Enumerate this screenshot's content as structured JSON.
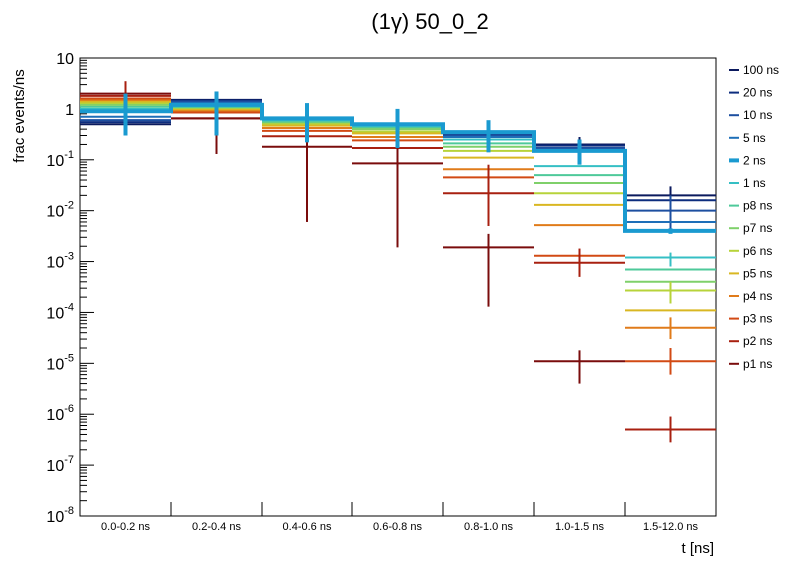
{
  "chart_data": {
    "type": "line",
    "title": "(1γ) 50_0_2",
    "xlabel": "t [ns]",
    "ylabel": "frac events/ns",
    "yscale": "log",
    "ylim": [
      1e-08,
      10
    ],
    "ytick_labels": [
      {
        "base": "10",
        "exp": "-8"
      },
      {
        "base": "10",
        "exp": "-7"
      },
      {
        "base": "10",
        "exp": "-6"
      },
      {
        "base": "10",
        "exp": "-5"
      },
      {
        "base": "10",
        "exp": "-4"
      },
      {
        "base": "10",
        "exp": "-3"
      },
      {
        "base": "10",
        "exp": "-2"
      },
      {
        "base": "10",
        "exp": "-1"
      },
      {
        "base": "1",
        "exp": ""
      },
      {
        "base": "10",
        "exp": ""
      }
    ],
    "categories": [
      "0.0-0.2 ns",
      "0.2-0.4 ns",
      "0.4-0.6 ns",
      "0.6-0.8 ns",
      "0.8-1.0 ns",
      "1.0-1.5 ns",
      "1.5-12.0 ns"
    ],
    "legend_position": "right",
    "series": [
      {
        "name": "100 ns",
        "color": "#0b1a5e",
        "thick": false,
        "values": [
          0.5,
          1.5,
          0.62,
          0.5,
          0.34,
          0.2,
          0.02
        ],
        "errors": [
          null,
          [
            1.2,
            1.8
          ],
          null,
          null,
          [
            0.25,
            0.45
          ],
          [
            0.12,
            0.28
          ],
          [
            0.008,
            0.03
          ]
        ]
      },
      {
        "name": "20 ns",
        "color": "#0d2d7e",
        "thick": false,
        "values": [
          0.55,
          1.45,
          0.62,
          0.5,
          0.32,
          0.19,
          0.016
        ],
        "errors": [
          null,
          null,
          null,
          null,
          null,
          null,
          null
        ]
      },
      {
        "name": "10 ns",
        "color": "#1d4fa0",
        "thick": false,
        "values": [
          0.6,
          1.4,
          0.6,
          0.5,
          0.3,
          0.17,
          0.01
        ],
        "errors": [
          null,
          null,
          null,
          null,
          null,
          null,
          [
            0.004,
            0.02
          ]
        ]
      },
      {
        "name": "5 ns",
        "color": "#1e6fb8",
        "thick": false,
        "values": [
          0.7,
          1.3,
          0.6,
          0.5,
          0.28,
          0.15,
          0.006
        ],
        "errors": [
          null,
          null,
          null,
          null,
          null,
          null,
          null
        ]
      },
      {
        "name": "2 ns",
        "color": "#1a9ad0",
        "thick": true,
        "values": [
          0.9,
          1.2,
          0.65,
          0.5,
          0.35,
          0.15,
          0.004
        ],
        "errors": [
          [
            0.3,
            2.0
          ],
          [
            0.3,
            2.2
          ],
          [
            0.22,
            1.3
          ],
          [
            0.17,
            1.0
          ],
          [
            0.14,
            0.6
          ],
          [
            0.08,
            0.25
          ],
          [
            0.0035,
            0.0045
          ]
        ]
      },
      {
        "name": "1 ns",
        "color": "#35bfc4",
        "thick": false,
        "values": [
          1.0,
          1.1,
          0.6,
          0.45,
          0.25,
          0.075,
          0.0012
        ],
        "errors": [
          null,
          null,
          null,
          null,
          null,
          null,
          [
            0.0008,
            0.0015
          ]
        ]
      },
      {
        "name": "p8 ns",
        "color": "#4ec99a",
        "thick": false,
        "values": [
          1.1,
          1.05,
          0.55,
          0.42,
          0.21,
          0.05,
          0.0007
        ],
        "errors": [
          null,
          null,
          null,
          null,
          null,
          null,
          null
        ]
      },
      {
        "name": "p7 ns",
        "color": "#7fd06a",
        "thick": false,
        "values": [
          1.2,
          1.0,
          0.52,
          0.4,
          0.18,
          0.035,
          0.0004
        ],
        "errors": [
          null,
          null,
          null,
          null,
          null,
          null,
          null
        ]
      },
      {
        "name": "p6 ns",
        "color": "#b7d33a",
        "thick": false,
        "values": [
          1.3,
          0.98,
          0.5,
          0.36,
          0.15,
          0.022,
          0.00027
        ],
        "errors": [
          null,
          null,
          null,
          null,
          null,
          null,
          [
            0.00015,
            0.0004
          ]
        ]
      },
      {
        "name": "p5 ns",
        "color": "#d9b722",
        "thick": false,
        "values": [
          1.4,
          0.95,
          0.47,
          0.33,
          0.11,
          0.013,
          0.00011
        ],
        "errors": [
          null,
          null,
          null,
          null,
          null,
          null,
          null
        ]
      },
      {
        "name": "p4 ns",
        "color": "#e07b1a",
        "thick": false,
        "values": [
          1.5,
          0.9,
          0.42,
          0.28,
          0.065,
          0.0052,
          5e-05
        ],
        "errors": [
          null,
          null,
          null,
          null,
          null,
          null,
          [
            3e-05,
            8e-05
          ]
        ]
      },
      {
        "name": "p3 ns",
        "color": "#d24a14",
        "thick": false,
        "values": [
          1.6,
          0.85,
          0.37,
          0.24,
          0.045,
          0.0013,
          1.1e-05
        ],
        "errors": [
          null,
          null,
          null,
          null,
          null,
          null,
          [
            6e-06,
            2e-05
          ]
        ]
      },
      {
        "name": "p2 ns",
        "color": "#a82010",
        "thick": false,
        "values": [
          1.8,
          0.65,
          0.29,
          0.17,
          0.022,
          0.00095,
          5e-07
        ],
        "errors": [
          [
            0.8,
            3.5
          ],
          null,
          null,
          null,
          [
            0.005,
            0.08
          ],
          [
            0.0005,
            0.0018
          ],
          [
            2.8e-07,
            9e-07
          ]
        ]
      },
      {
        "name": "p1 ns",
        "color": "#7a0c0c",
        "thick": false,
        "values": [
          2.0,
          0.65,
          0.18,
          0.085,
          0.0019,
          1.1e-05,
          null
        ],
        "errors": [
          null,
          [
            0.13,
            1.8
          ],
          [
            0.006,
            0.6
          ],
          [
            0.0019,
            0.4
          ],
          [
            0.00013,
            0.0035
          ],
          [
            4e-06,
            1.8e-05
          ],
          null
        ]
      }
    ]
  }
}
